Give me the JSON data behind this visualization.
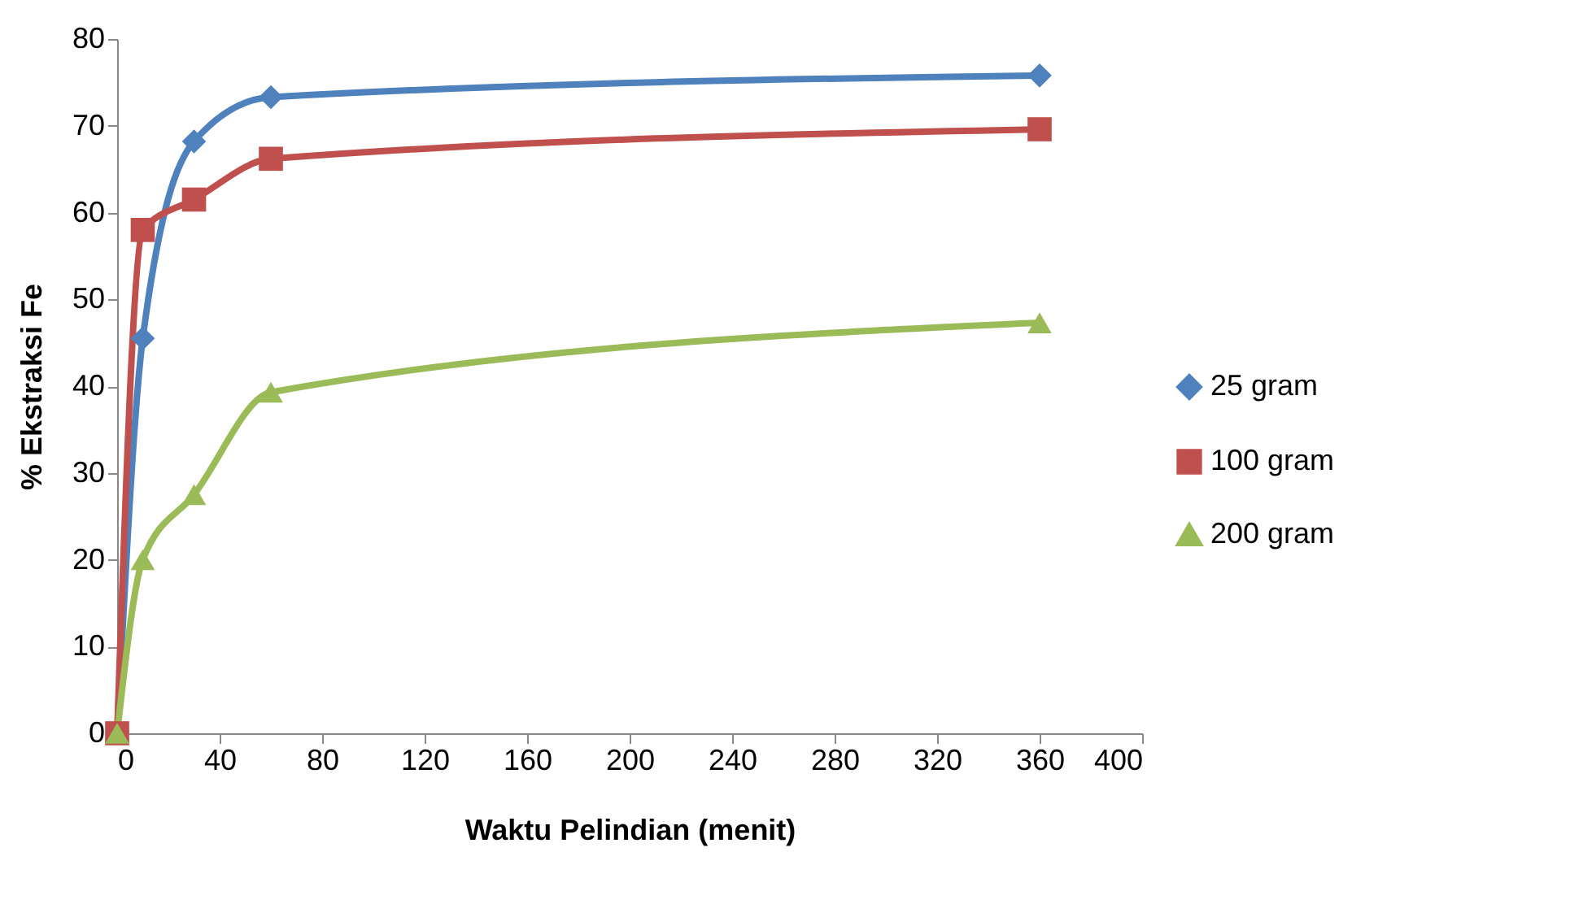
{
  "chart_data": {
    "type": "line",
    "xlabel": "Waktu Pelindian (menit)",
    "ylabel": "% Ekstraksi Fe",
    "x": [
      0,
      10,
      30,
      60,
      360
    ],
    "xlim": [
      0,
      400
    ],
    "xticks": [
      0,
      40,
      80,
      120,
      160,
      200,
      240,
      280,
      320,
      360,
      400
    ],
    "ylim": [
      0,
      80
    ],
    "yticks": [
      0,
      10,
      20,
      30,
      40,
      50,
      60,
      70,
      80
    ],
    "grid": false,
    "legend": "right",
    "series": [
      {
        "name": "25 gram",
        "color": "#4f81bd",
        "marker": "diamond",
        "values": [
          0,
          45.5,
          68.2,
          73.3,
          75.8
        ]
      },
      {
        "name": "100 gram",
        "color": "#c0504d",
        "marker": "square",
        "values": [
          0,
          58,
          61.5,
          66.2,
          69.6
        ]
      },
      {
        "name": "200 gram",
        "color": "#9bbb59",
        "marker": "triangle",
        "values": [
          0,
          20,
          27.5,
          39.3,
          47.3
        ]
      }
    ]
  }
}
